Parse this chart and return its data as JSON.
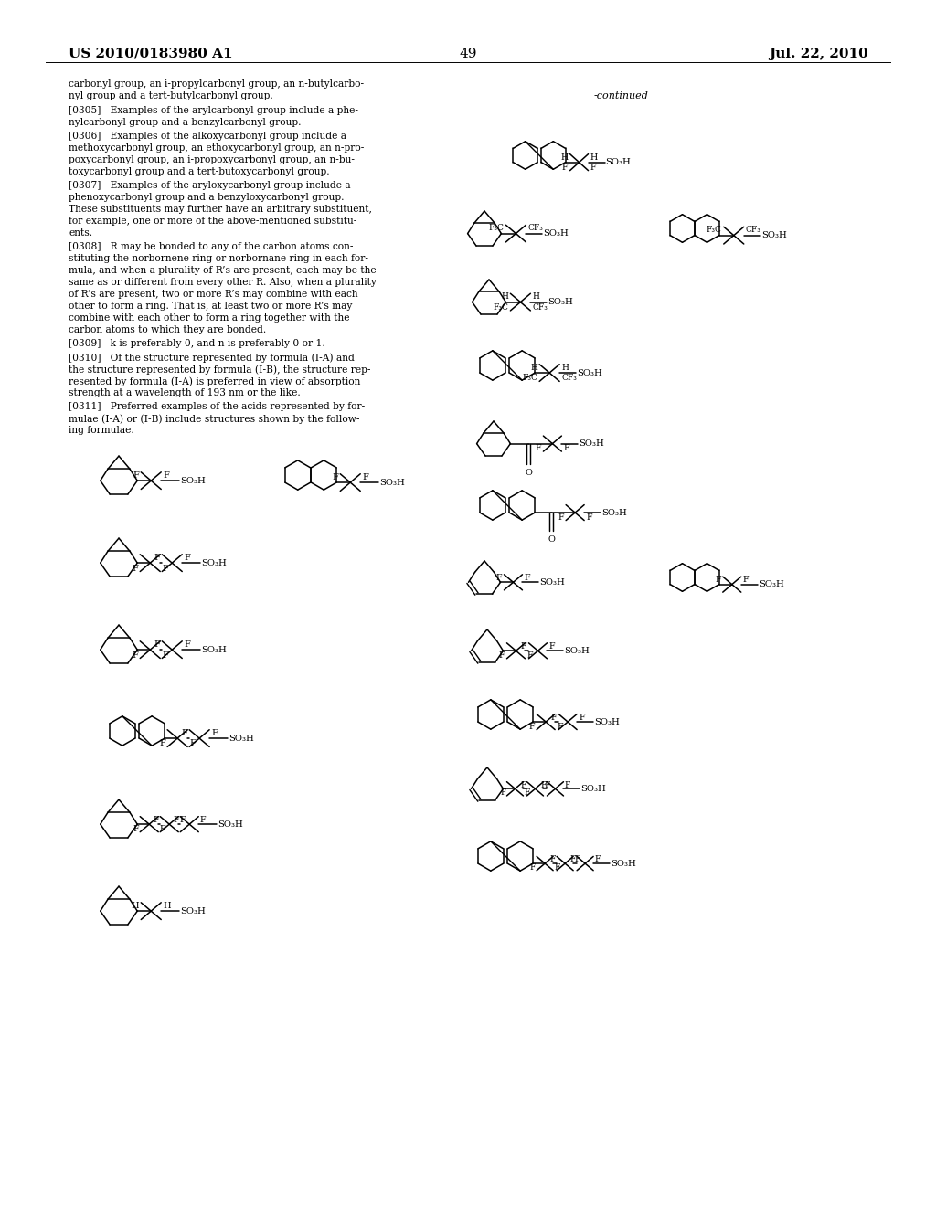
{
  "bg": "#ffffff",
  "header_left": "US 2010/0183980 A1",
  "header_right": "Jul. 22, 2010",
  "page_num": "49",
  "continued_label": "-continued",
  "left_text": [
    [
      75,
      87,
      "carbonyl group, an i-propylcarbonyl group, an n-butylcarbo-"
    ],
    [
      75,
      100,
      "nyl group and a tert-butylcarbonyl group."
    ],
    [
      75,
      116,
      "[0305]   Examples of the arylcarbonyl group include a phe-"
    ],
    [
      75,
      129,
      "nylcarbonyl group and a benzylcarbonyl group."
    ],
    [
      75,
      144,
      "[0306]   Examples of the alkoxycarbonyl group include a"
    ],
    [
      75,
      157,
      "methoxycarbonyl group, an ethoxycarbonyl group, an n-pro-"
    ],
    [
      75,
      170,
      "poxycarbonyl group, an i-propoxycarbonyl group, an n-bu-"
    ],
    [
      75,
      183,
      "toxycarbonyl group and a tert-butoxycarbonyl group."
    ],
    [
      75,
      198,
      "[0307]   Examples of the aryloxycarbonyl group include a"
    ],
    [
      75,
      211,
      "phenoxycarbonyl group and a benzyloxycarbonyl group."
    ],
    [
      75,
      224,
      "These substituents may further have an arbitrary substituent,"
    ],
    [
      75,
      237,
      "for example, one or more of the above-mentioned substitu-"
    ],
    [
      75,
      250,
      "ents."
    ],
    [
      75,
      265,
      "[0308]   R may be bonded to any of the carbon atoms con-"
    ],
    [
      75,
      278,
      "stituting the norbornene ring or norbornane ring in each for-"
    ],
    [
      75,
      291,
      "mula, and when a plurality of R’s are present, each may be the"
    ],
    [
      75,
      304,
      "same as or different from every other R. Also, when a plurality"
    ],
    [
      75,
      317,
      "of R’s are present, two or more R’s may combine with each"
    ],
    [
      75,
      330,
      "other to form a ring. That is, at least two or more R’s may"
    ],
    [
      75,
      343,
      "combine with each other to form a ring together with the"
    ],
    [
      75,
      356,
      "carbon atoms to which they are bonded."
    ],
    [
      75,
      371,
      "[0309]   k is preferably 0, and n is preferably 0 or 1."
    ],
    [
      75,
      386,
      "[0310]   Of the structure represented by formula (I-A) and"
    ],
    [
      75,
      399,
      "the structure represented by formula (I-B), the structure rep-"
    ],
    [
      75,
      412,
      "resented by formula (I-A) is preferred in view of absorption"
    ],
    [
      75,
      425,
      "strength at a wavelength of 193 nm or the like."
    ],
    [
      75,
      440,
      "[0311]   Preferred examples of the acids represented by for-"
    ],
    [
      75,
      453,
      "mulae (I-A) or (I-B) include structures shown by the follow-"
    ],
    [
      75,
      466,
      "ing formulae."
    ]
  ]
}
